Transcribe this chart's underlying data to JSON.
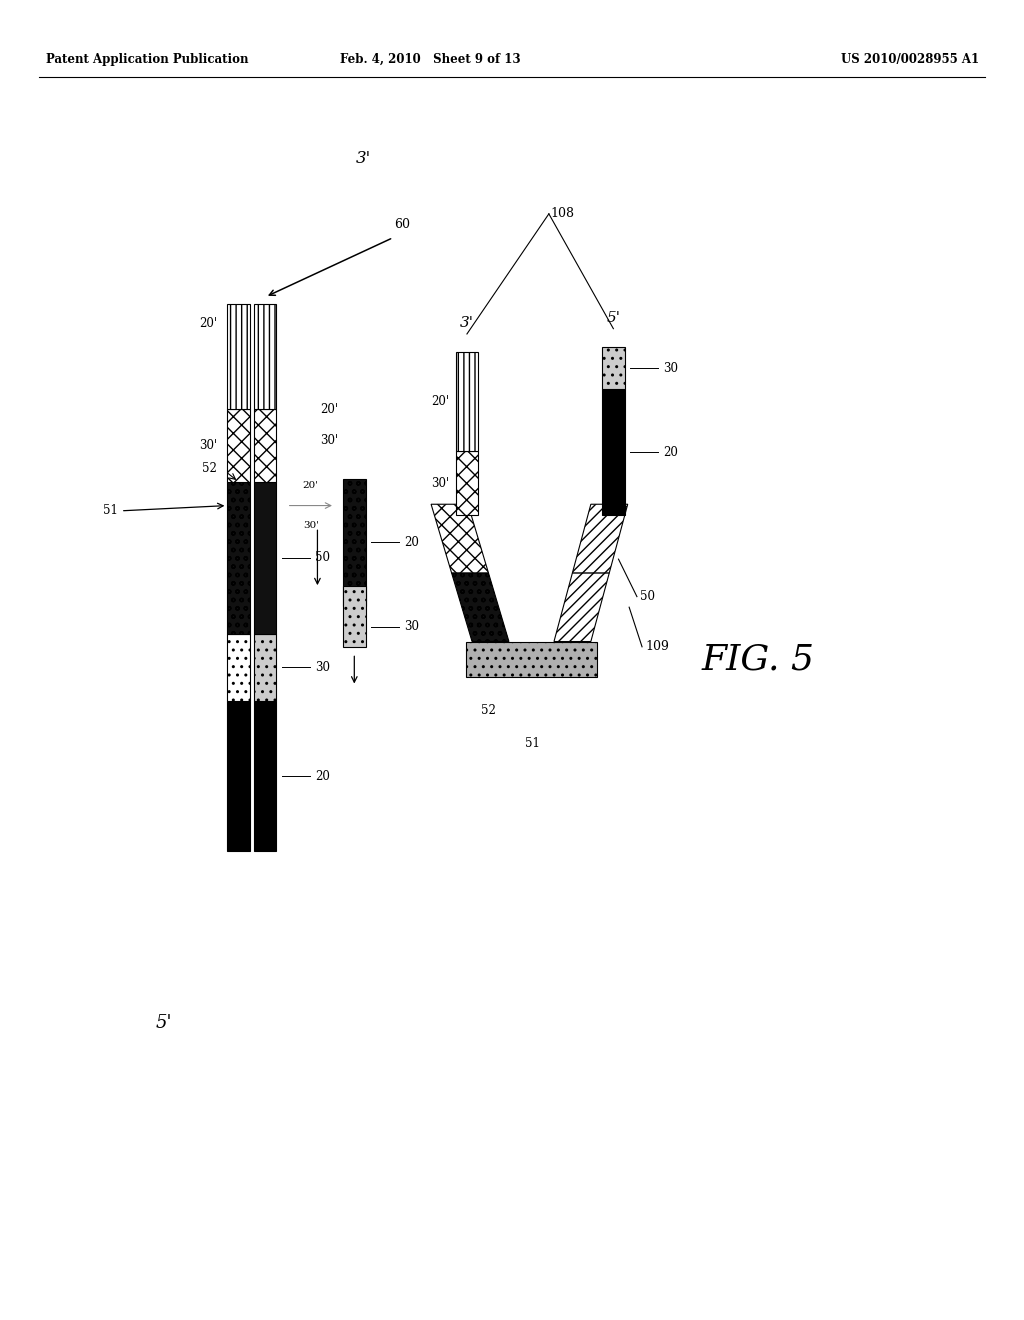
{
  "bg_color": "#ffffff",
  "header_left": "Patent Application Publication",
  "header_mid": "Feb. 4, 2010   Sheet 9 of 13",
  "header_right": "US 2010/0028955 A1",
  "fig_label": "FIG. 5",
  "label_3prime_top": "3'",
  "label_5prime_bot": "5'",
  "label_60": "60",
  "label_108": "108",
  "label_109": "109",
  "label_20": "20",
  "label_20p": "20'",
  "label_30": "30",
  "label_30p": "30'",
  "label_50": "50",
  "label_51": "51",
  "label_52": "52",
  "label_3p_right": "3'",
  "label_5p_right": "5'"
}
